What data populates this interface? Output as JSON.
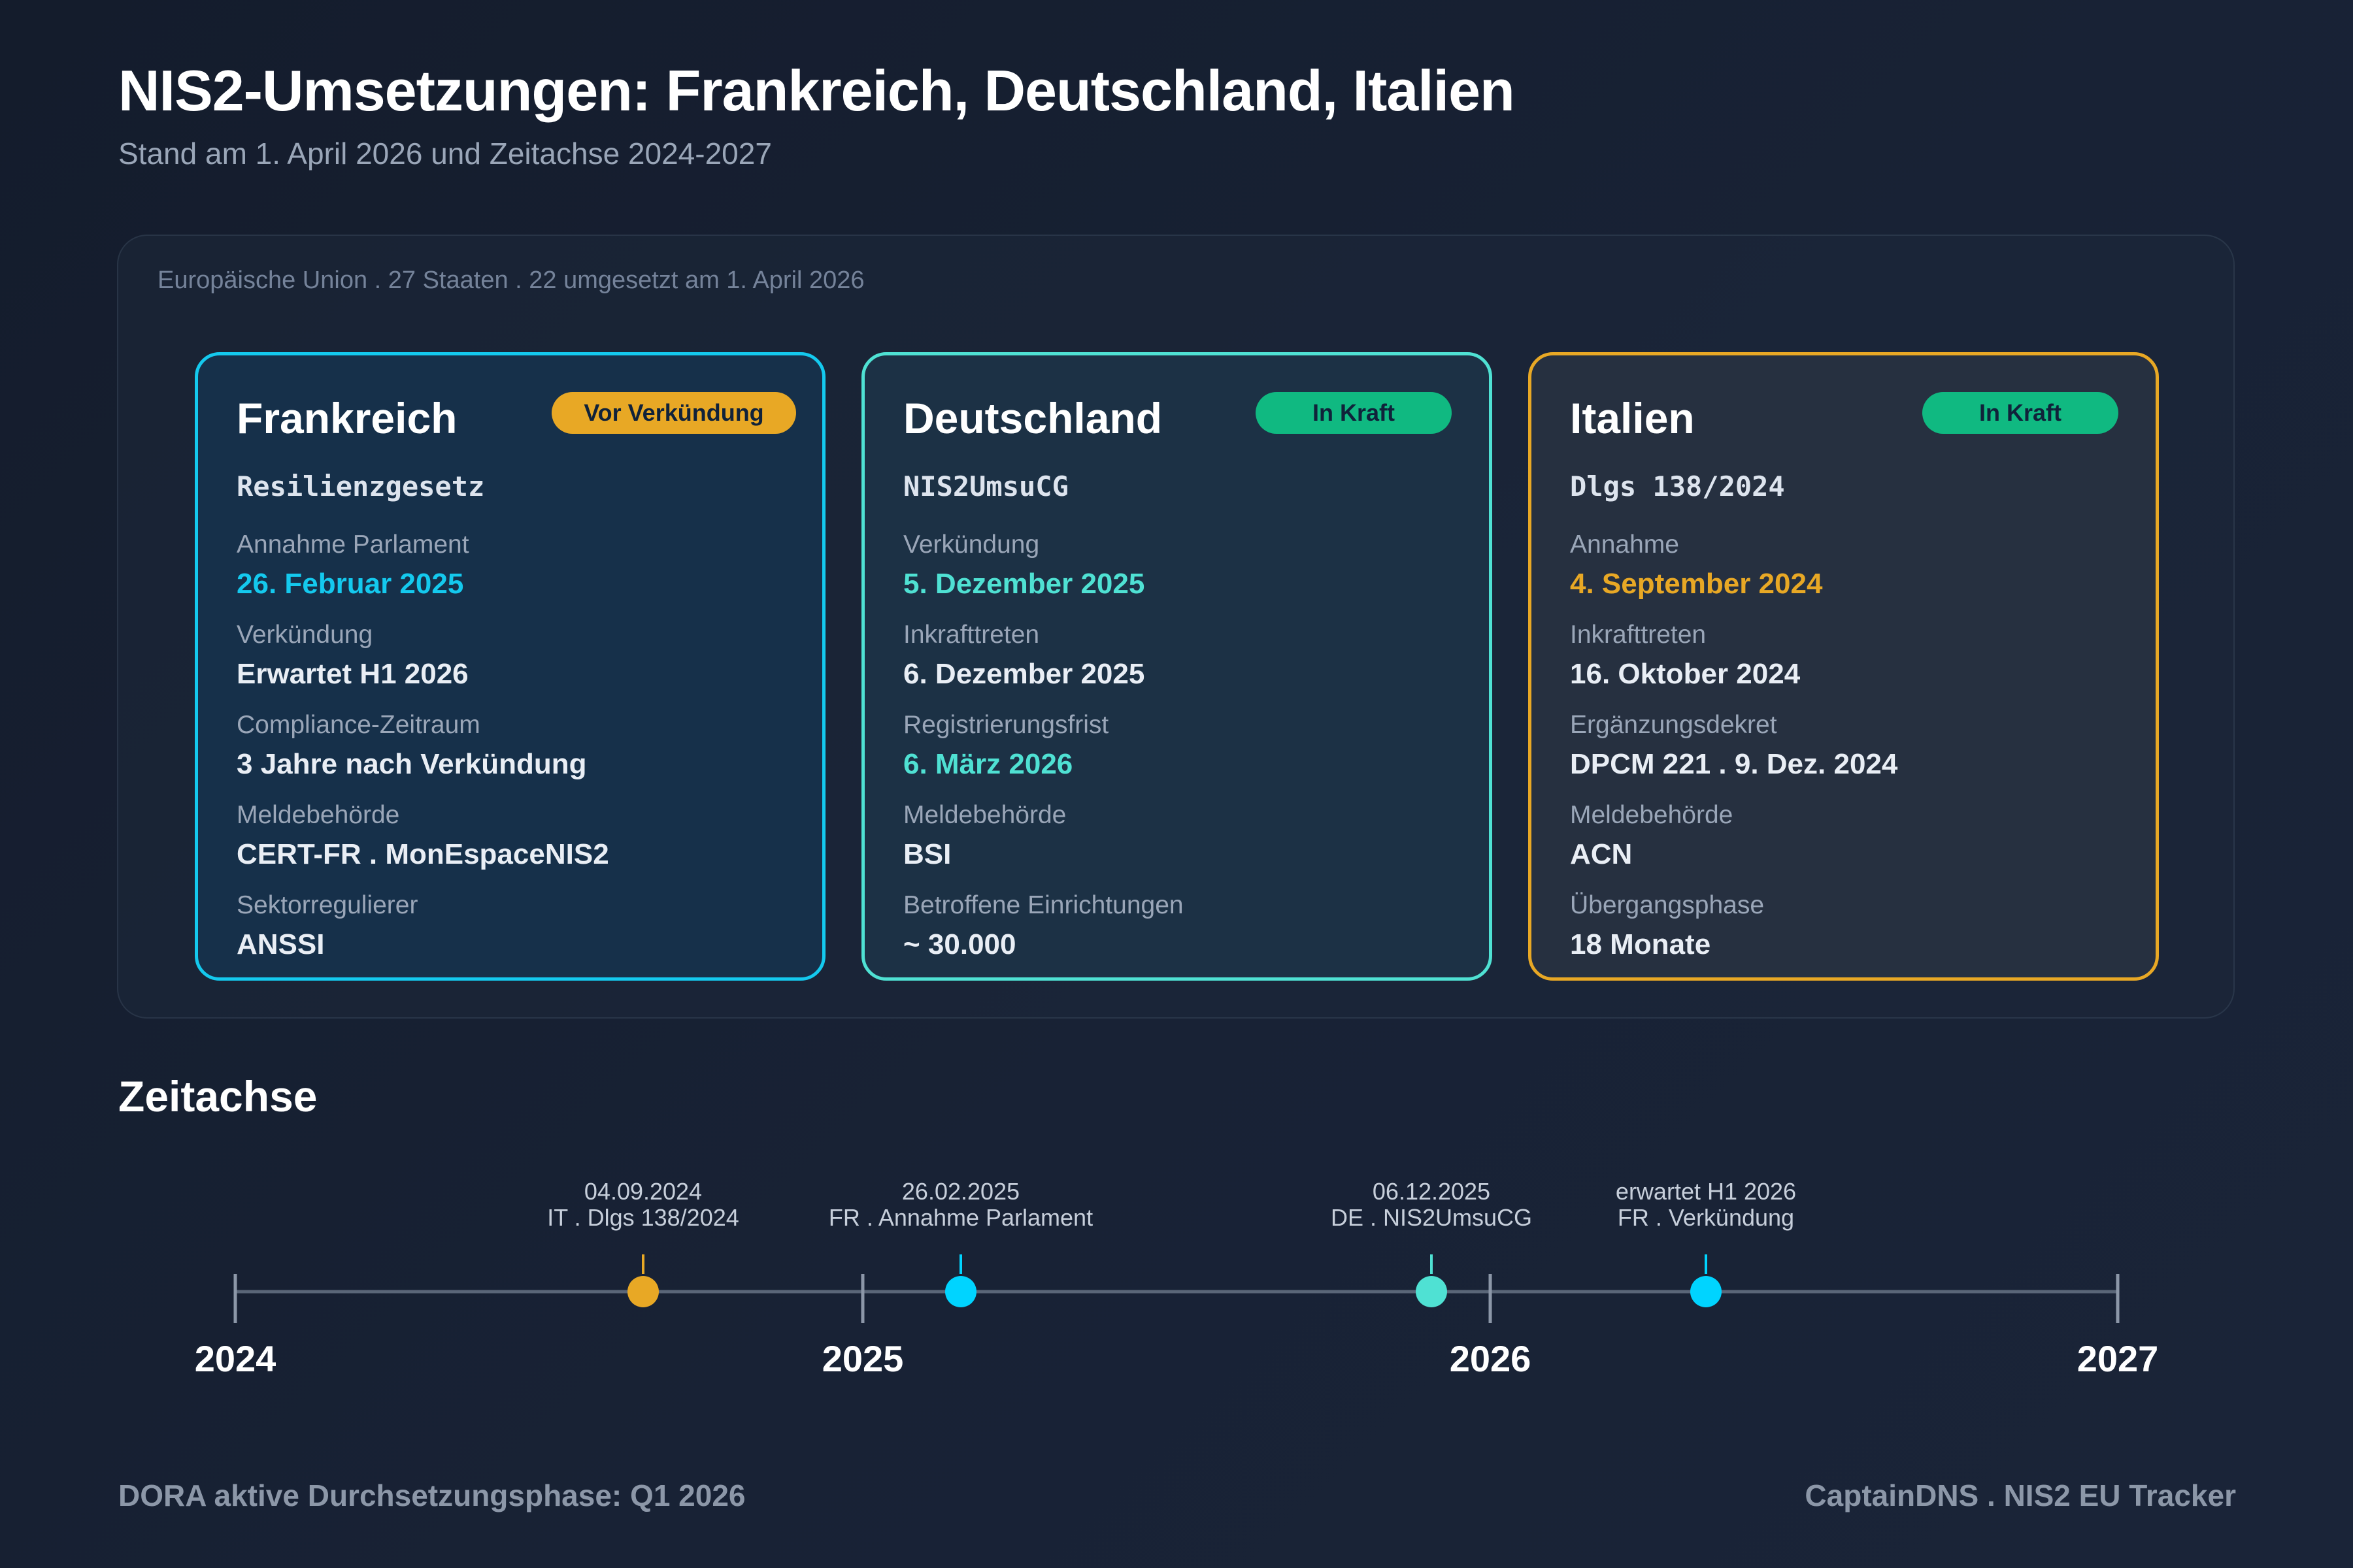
{
  "header": {
    "title": "NIS2-Umsetzungen: Frankreich, Deutschland, Italien",
    "subtitle": "Stand am 1. April 2026 und Zeitachse 2024-2027"
  },
  "panel": {
    "caption": "Europäische Union . 27 Staaten . 22 umgesetzt am 1. April 2026"
  },
  "cards": {
    "fr": {
      "name": "Frankreich",
      "badge": "Vor Verkündung",
      "law": "Resilienzgesetz",
      "fields": [
        {
          "label": "Annahme Parlament",
          "value": "26. Februar 2025"
        },
        {
          "label": "Verkündung",
          "value": "Erwartet H1 2026"
        },
        {
          "label": "Compliance-Zeitraum",
          "value": "3 Jahre nach Verkündung"
        },
        {
          "label": "Meldebehörde",
          "value": "CERT-FR . MonEspaceNIS2"
        },
        {
          "label": "Sektorregulierer",
          "value": "ANSSI"
        }
      ]
    },
    "de": {
      "name": "Deutschland",
      "badge": "In Kraft",
      "law": "NIS2UmsuCG",
      "fields": [
        {
          "label": "Verkündung",
          "value": "5. Dezember 2025"
        },
        {
          "label": "Inkrafttreten",
          "value": "6. Dezember 2025"
        },
        {
          "label": "Registrierungsfrist",
          "value": "6. März 2026"
        },
        {
          "label": "Meldebehörde",
          "value": "BSI"
        },
        {
          "label": "Betroffene Einrichtungen",
          "value": "~ 30.000"
        }
      ]
    },
    "it": {
      "name": "Italien",
      "badge": "In Kraft",
      "law": "Dlgs 138/2024",
      "fields": [
        {
          "label": "Annahme",
          "value": "4. September 2024"
        },
        {
          "label": "Inkrafttreten",
          "value": "16. Oktober 2024"
        },
        {
          "label": "Ergänzungsdekret",
          "value": "DPCM 221 . 9. Dez. 2024"
        },
        {
          "label": "Meldebehörde",
          "value": "ACN"
        },
        {
          "label": "Übergangsphase",
          "value": "18 Monate"
        }
      ]
    }
  },
  "timeline": {
    "title": "Zeitachse",
    "years": [
      "2024",
      "2025",
      "2026",
      "2027"
    ],
    "events": [
      {
        "date": "04.09.2024",
        "label": "IT . Dlgs 138/2024",
        "color": "#e8a825"
      },
      {
        "date": "26.02.2025",
        "label": "FR . Annahme Parlament",
        "color": "#00d4ff"
      },
      {
        "date": "06.12.2025",
        "label": "DE . NIS2UmsuCG",
        "color": "#4fe1d3"
      },
      {
        "date": "erwartet H1 2026",
        "label": "FR . Verkündung",
        "color": "#00d4ff"
      }
    ]
  },
  "footer": {
    "left": "DORA aktive Durchsetzungsphase: Q1 2026",
    "right": "CaptainDNS . NIS2 EU Tracker"
  }
}
